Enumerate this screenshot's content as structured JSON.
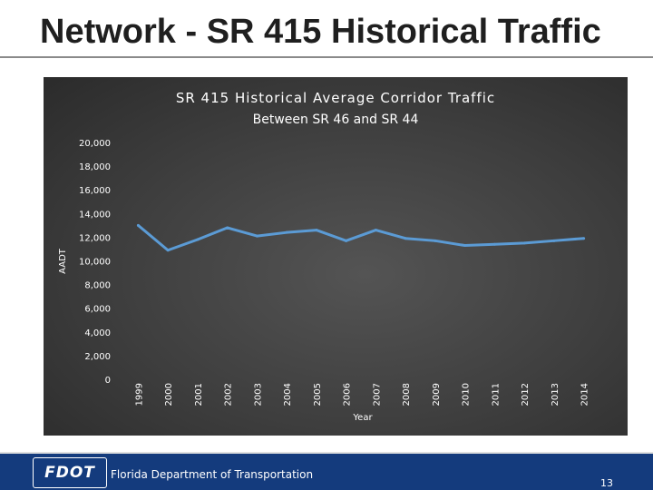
{
  "slide": {
    "title": "Network - SR 415 Historical Traffic",
    "footer_org": "Florida Department of Transportation",
    "logo_text": "FDOT",
    "page_number": "13"
  },
  "colors": {
    "line": "#5b9bd5",
    "panel": "#3e3e3e",
    "footer": "#143b7d",
    "chart_text": "#ffffff"
  },
  "chart_data": {
    "type": "line",
    "title": "SR 415 Historical Average Corridor Traffic",
    "subtitle": "Between SR 46 and SR 44",
    "xlabel": "Year",
    "ylabel": "AADT",
    "categories": [
      "1999",
      "2000",
      "2001",
      "2002",
      "2003",
      "2004",
      "2005",
      "2006",
      "2007",
      "2008",
      "2009",
      "2010",
      "2011",
      "2012",
      "2013",
      "2014"
    ],
    "series": [
      {
        "values": [
          13000,
          10900,
          11800,
          12800,
          12100,
          12400,
          12600,
          11700,
          12600,
          11900,
          11700,
          11300,
          11400,
          11500,
          11700,
          11900
        ]
      }
    ],
    "ylim": [
      0,
      20000
    ],
    "yticks": [
      "0",
      "2,000",
      "4,000",
      "6,000",
      "8,000",
      "10,000",
      "12,000",
      "14,000",
      "16,000",
      "18,000",
      "20,000"
    ],
    "ytick_values": [
      0,
      2000,
      4000,
      6000,
      8000,
      10000,
      12000,
      14000,
      16000,
      18000,
      20000
    ],
    "grid": false,
    "legend": "none"
  }
}
